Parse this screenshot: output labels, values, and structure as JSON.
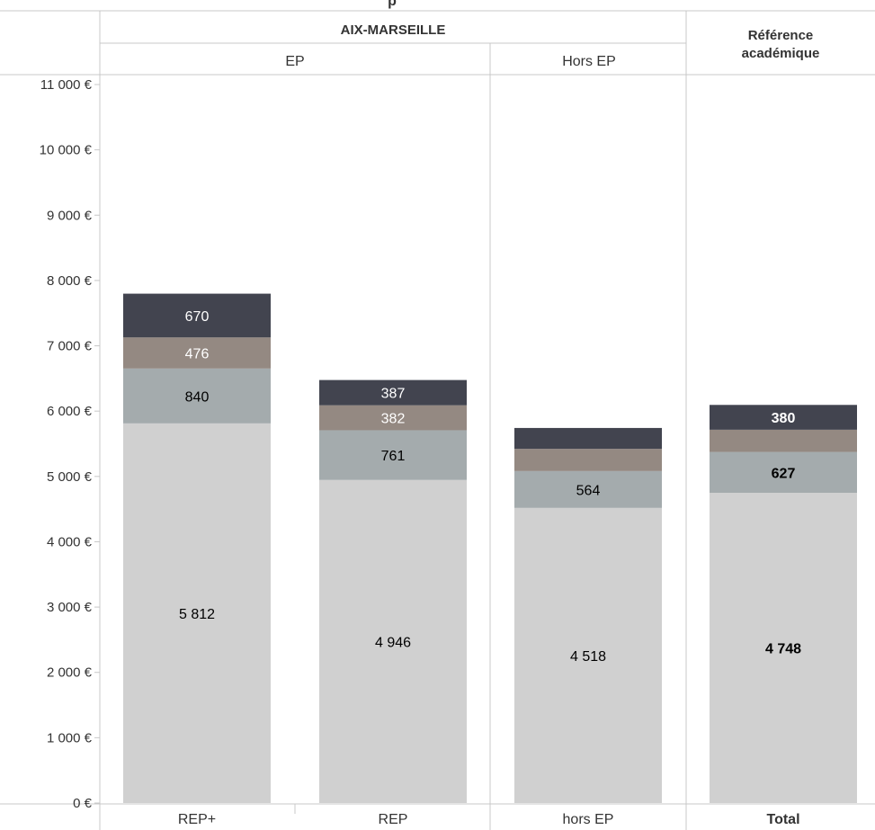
{
  "header": {
    "title_fragment": "p",
    "region": "AIX-MARSEILLE",
    "group_ep": "EP",
    "group_hors_ep": "Hors EP",
    "reference_line1": "Référence",
    "reference_line2": "académique"
  },
  "chart_data": {
    "type": "bar",
    "stacked": true,
    "categories": [
      "REP+",
      "REP",
      "hors EP",
      "Total"
    ],
    "y_tick_labels": [
      "0 €",
      "1 000 €",
      "2 000 €",
      "3 000 €",
      "4 000 €",
      "5 000 €",
      "6 000 €",
      "7 000 €",
      "8 000 €",
      "9 000 €",
      "10 000 €",
      "11 000 €"
    ],
    "ylim": [
      0,
      11000
    ],
    "series": [
      {
        "values": [
          5812,
          4946,
          4518,
          4748
        ],
        "labels": [
          "5 812",
          "4 946",
          "4 518",
          "4 748"
        ],
        "color": "#d0d0d0",
        "label_color": "#000000"
      },
      {
        "values": [
          840,
          761,
          564,
          627
        ],
        "labels": [
          "840",
          "761",
          "564",
          "627"
        ],
        "color": "#a4abad",
        "label_color": "#000000"
      },
      {
        "values": [
          476,
          382,
          340,
          340
        ],
        "labels": [
          "476",
          "382",
          "",
          ""
        ],
        "color": "#948982",
        "label_color": "#ffffff"
      },
      {
        "values": [
          670,
          387,
          320,
          380
        ],
        "labels": [
          "670",
          "387",
          "",
          "380"
        ],
        "color": "#42444f",
        "label_color": "#ffffff"
      }
    ],
    "bold_categories": [
      "Total"
    ],
    "grid": false
  },
  "colors": {
    "border": "#c8c8c8",
    "text": "#333333"
  }
}
